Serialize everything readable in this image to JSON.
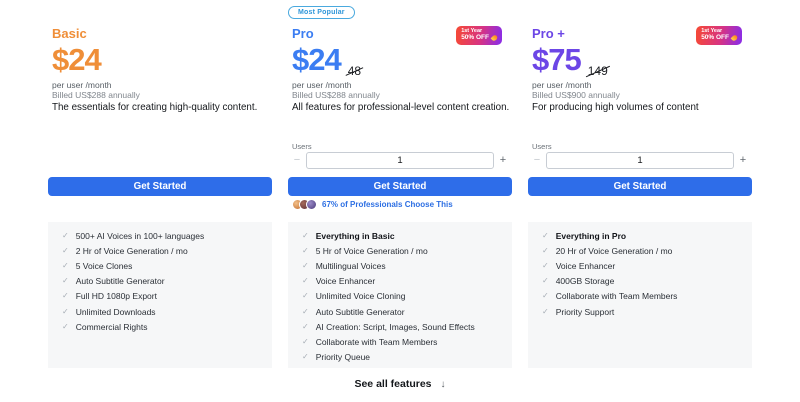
{
  "most_popular_label": "Most Popular",
  "discount_badge": {
    "line1": "1st Year",
    "line2": "50% OFF",
    "icon": "flame-icon"
  },
  "users_label": "Users",
  "users_value": "1",
  "stepper": {
    "decrease": "−",
    "increase": "+"
  },
  "cta_label": "Get Started",
  "social_proof": "67% of Professionals Choose This",
  "see_all": {
    "label": "See all features",
    "arrow": "↓"
  },
  "colors": {
    "basic_accent": "#ef8e38",
    "pro_accent": "#3b7df2",
    "proplus_accent": "#6c46e6",
    "button_blue": "#2e6de9",
    "badge_gradient_start": "#f4483a",
    "badge_gradient_end": "#8e2de2",
    "panel_gray": "#f6f7f8",
    "most_popular_blue": "#2e96d9"
  },
  "tiers": [
    {
      "id": "basic",
      "name": "Basic",
      "price": "$24",
      "per_user": "per user /month",
      "billed": "Billed US$288 annually",
      "description": "The essentials for creating high-quality content.",
      "features": [
        {
          "text": "500+ AI Voices in 100+ languages",
          "bold": false
        },
        {
          "text": "2 Hr of Voice Generation / mo",
          "bold": false
        },
        {
          "text": "5 Voice Clones",
          "bold": false
        },
        {
          "text": "Auto Subtitle Generator",
          "bold": false
        },
        {
          "text": "Full HD 1080p Export",
          "bold": false
        },
        {
          "text": "Unlimited Downloads",
          "bold": false
        },
        {
          "text": "Commercial Rights",
          "bold": false
        }
      ]
    },
    {
      "id": "pro",
      "name": "Pro",
      "price": "$24",
      "old_price": "48",
      "per_user": "per user /month",
      "billed": "Billed US$288 annually",
      "description": "All features for professional-level content creation.",
      "features": [
        {
          "text": "Everything in Basic",
          "bold": true
        },
        {
          "text": "5 Hr of Voice Generation / mo",
          "bold": false
        },
        {
          "text": "Multilingual Voices",
          "bold": false
        },
        {
          "text": "Voice Enhancer",
          "bold": false
        },
        {
          "text": "Unlimited Voice Cloning",
          "bold": false
        },
        {
          "text": "Auto Subtitle Generator",
          "bold": false
        },
        {
          "text": "AI Creation: Script, Images, Sound Effects",
          "bold": false
        },
        {
          "text": "Collaborate with Team Members",
          "bold": false
        },
        {
          "text": "Priority Queue",
          "bold": false
        }
      ]
    },
    {
      "id": "proplus",
      "name": "Pro +",
      "price": "$75",
      "old_price": "149",
      "per_user": "per user /month",
      "billed": "Billed US$900 annually",
      "description": "For producing high volumes of content",
      "features": [
        {
          "text": "Everything in Pro",
          "bold": true
        },
        {
          "text": "20 Hr of Voice Generation / mo",
          "bold": false
        },
        {
          "text": "Voice Enhancer",
          "bold": false
        },
        {
          "text": "400GB Storage",
          "bold": false
        },
        {
          "text": "Collaborate with Team Members",
          "bold": false
        },
        {
          "text": "Priority Support",
          "bold": false
        }
      ]
    }
  ]
}
